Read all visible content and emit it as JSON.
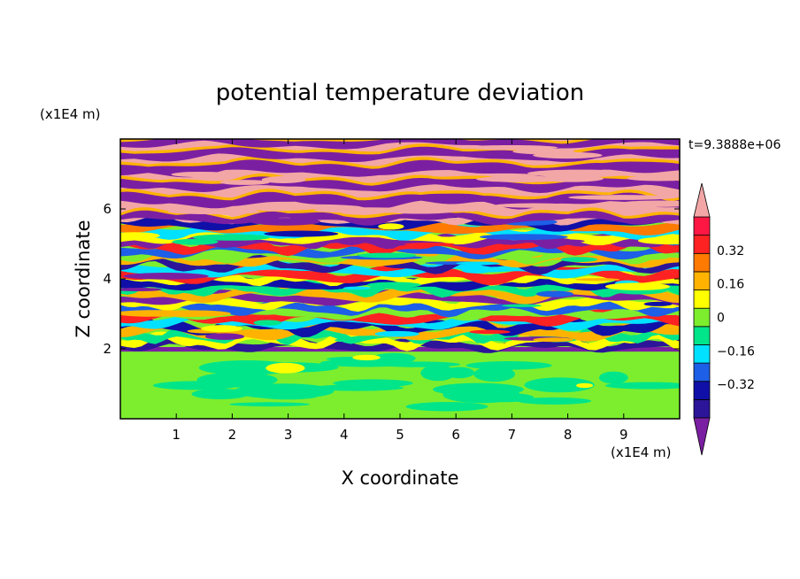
{
  "chart_data": {
    "type": "heatmap",
    "title": "potential temperature deviation",
    "xlabel": "X coordinate",
    "ylabel": "Z coordinate",
    "x_unit_label": "(x1E4 m)",
    "y_unit_label": "(x1E4 m)",
    "time_label": "t=9.3888e+06",
    "xlim": [
      0,
      10
    ],
    "ylim": [
      0,
      8
    ],
    "x_ticks": [
      1,
      2,
      3,
      4,
      5,
      6,
      7,
      8,
      9
    ],
    "x_tick_labels": [
      "1",
      "2",
      "3",
      "4",
      "5",
      "6",
      "7",
      "8",
      "9"
    ],
    "y_ticks": [
      2,
      4,
      6
    ],
    "y_tick_labels": [
      "2",
      "4",
      "6"
    ],
    "colorbar": {
      "levels": [
        -0.48,
        -0.4,
        -0.32,
        -0.24,
        -0.16,
        -0.08,
        0,
        0.08,
        0.16,
        0.24,
        0.32,
        0.4,
        0.48
      ],
      "colors": [
        "#7b1fa2",
        "#2c1599",
        "#1010a8",
        "#1d5fe6",
        "#00e1ff",
        "#00e58a",
        "#7dee2e",
        "#ffff00",
        "#ffb300",
        "#ff7a00",
        "#ff2222",
        "#ff1744",
        "#f3a6a6"
      ],
      "tick_values": [
        0.32,
        0.16,
        0,
        -0.16,
        -0.32
      ],
      "tick_labels": [
        "0.32",
        "0.16",
        "0",
        "−0.16",
        "−0.32"
      ],
      "extend": "both"
    },
    "layers": [
      {
        "z_range": [
          0,
          2
        ],
        "description_values": "mostly 0 to 0.08",
        "dominant": 0.04
      },
      {
        "z_range": [
          2,
          6
        ],
        "description_values": "banded -0.48 to 0.48",
        "dominant": 0.0
      },
      {
        "z_range": [
          6,
          8
        ],
        "description_values": "alternating -0.48 and 0.48 bands",
        "dominant": 0.48
      }
    ]
  }
}
